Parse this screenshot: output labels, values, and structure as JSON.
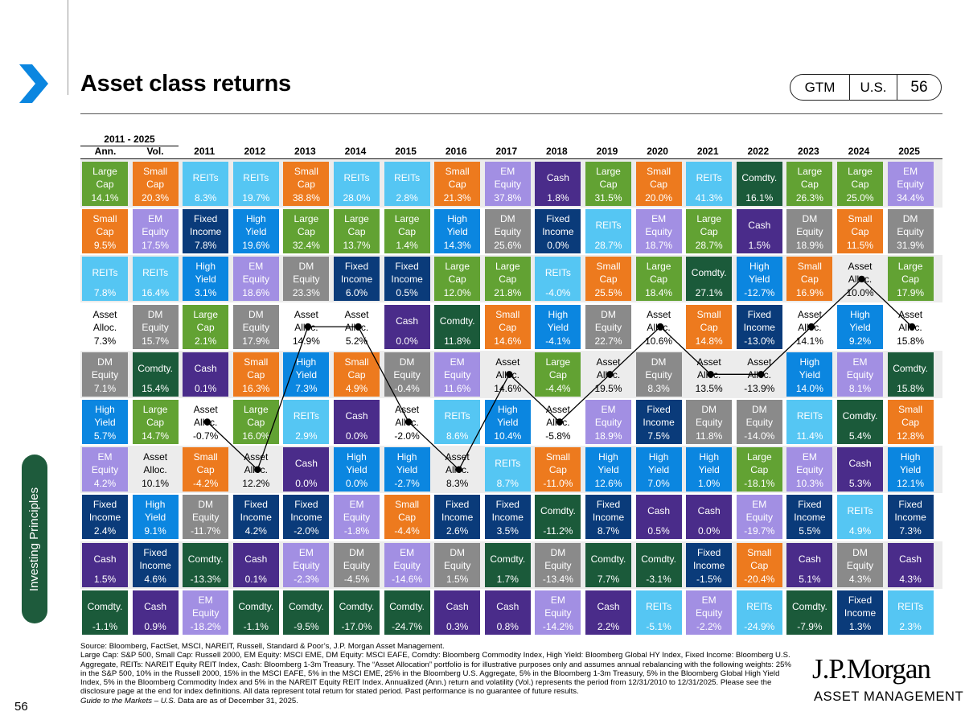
{
  "page": {
    "title": "Asset class returns",
    "badge": {
      "a": "GTM",
      "b": "U.S.",
      "c": "56"
    },
    "side_tab": "Investing Principles",
    "page_number": "56",
    "brand": {
      "name": "J.P.Morgan",
      "sub": "ASSET MANAGEMENT"
    }
  },
  "colors": {
    "Large Cap": "#62a233",
    "Small Cap": "#ed7a1e",
    "EM Equity": "#a28fe3",
    "REITs": "#55c6f3",
    "Cash": "#4a2c8a",
    "Fixed Income": "#0a3b7a",
    "High Yield": "#0b86e0",
    "DM Equity": "#8a8a8a",
    "Comdty.": "#1b5a3a",
    "Asset Alloc.": "#ffffff"
  },
  "chart_data": {
    "type": "table",
    "title": "Asset class returns",
    "period_label": "2011 - 2025",
    "summary_headers": [
      "Ann.",
      "Vol."
    ],
    "years": [
      "2011",
      "2012",
      "2013",
      "2014",
      "2015",
      "2016",
      "2017",
      "2018",
      "2019",
      "2020",
      "2021",
      "2022",
      "2023",
      "2024",
      "2025"
    ],
    "annualized": [
      {
        "asset": "Large Cap",
        "value": "14.1%"
      },
      {
        "asset": "Small Cap",
        "value": "9.5%"
      },
      {
        "asset": "REITs",
        "value": "7.8%"
      },
      {
        "asset": "Asset Alloc.",
        "value": "7.3%"
      },
      {
        "asset": "DM Equity",
        "value": "7.1%"
      },
      {
        "asset": "High Yield",
        "value": "5.7%"
      },
      {
        "asset": "EM Equity",
        "value": "4.2%"
      },
      {
        "asset": "Fixed Income",
        "value": "2.4%"
      },
      {
        "asset": "Cash",
        "value": "1.5%"
      },
      {
        "asset": "Comdty.",
        "value": "-1.1%"
      }
    ],
    "volatility": [
      {
        "asset": "Small Cap",
        "value": "20.3%"
      },
      {
        "asset": "EM Equity",
        "value": "17.5%"
      },
      {
        "asset": "REITs",
        "value": "16.4%"
      },
      {
        "asset": "DM Equity",
        "value": "15.7%"
      },
      {
        "asset": "Comdty.",
        "value": "15.4%"
      },
      {
        "asset": "Large Cap",
        "value": "14.7%"
      },
      {
        "asset": "Asset Alloc.",
        "value": "10.1%"
      },
      {
        "asset": "High Yield",
        "value": "9.1%"
      },
      {
        "asset": "Fixed Income",
        "value": "4.6%"
      },
      {
        "asset": "Cash",
        "value": "0.9%"
      }
    ],
    "columns": [
      [
        {
          "asset": "REITs",
          "value": "8.3%"
        },
        {
          "asset": "Fixed Income",
          "value": "7.8%"
        },
        {
          "asset": "High Yield",
          "value": "3.1%"
        },
        {
          "asset": "Large Cap",
          "value": "2.1%"
        },
        {
          "asset": "Cash",
          "value": "0.1%"
        },
        {
          "asset": "Asset Alloc.",
          "value": "-0.7%"
        },
        {
          "asset": "Small Cap",
          "value": "-4.2%"
        },
        {
          "asset": "DM Equity",
          "value": "-11.7%"
        },
        {
          "asset": "Comdty.",
          "value": "-13.3%"
        },
        {
          "asset": "EM Equity",
          "value": "-18.2%"
        }
      ],
      [
        {
          "asset": "REITs",
          "value": "19.7%"
        },
        {
          "asset": "High Yield",
          "value": "19.6%"
        },
        {
          "asset": "EM Equity",
          "value": "18.6%"
        },
        {
          "asset": "DM Equity",
          "value": "17.9%"
        },
        {
          "asset": "Small Cap",
          "value": "16.3%"
        },
        {
          "asset": "Large Cap",
          "value": "16.0%"
        },
        {
          "asset": "Asset Alloc.",
          "value": "12.2%"
        },
        {
          "asset": "Fixed Income",
          "value": "4.2%"
        },
        {
          "asset": "Cash",
          "value": "0.1%"
        },
        {
          "asset": "Comdty.",
          "value": "-1.1%"
        }
      ],
      [
        {
          "asset": "Small Cap",
          "value": "38.8%"
        },
        {
          "asset": "Large Cap",
          "value": "32.4%"
        },
        {
          "asset": "DM Equity",
          "value": "23.3%"
        },
        {
          "asset": "Asset Alloc.",
          "value": "14.9%"
        },
        {
          "asset": "High Yield",
          "value": "7.3%"
        },
        {
          "asset": "REITs",
          "value": "2.9%"
        },
        {
          "asset": "Cash",
          "value": "0.0%"
        },
        {
          "asset": "Fixed Income",
          "value": "-2.0%"
        },
        {
          "asset": "EM Equity",
          "value": "-2.3%"
        },
        {
          "asset": "Comdty.",
          "value": "-9.5%"
        }
      ],
      [
        {
          "asset": "REITs",
          "value": "28.0%"
        },
        {
          "asset": "Large Cap",
          "value": "13.7%"
        },
        {
          "asset": "Fixed Income",
          "value": "6.0%"
        },
        {
          "asset": "Asset Alloc.",
          "value": "5.2%"
        },
        {
          "asset": "Small Cap",
          "value": "4.9%"
        },
        {
          "asset": "Cash",
          "value": "0.0%"
        },
        {
          "asset": "High Yield",
          "value": "0.0%"
        },
        {
          "asset": "EM Equity",
          "value": "-1.8%"
        },
        {
          "asset": "DM Equity",
          "value": "-4.5%"
        },
        {
          "asset": "Comdty.",
          "value": "-17.0%"
        }
      ],
      [
        {
          "asset": "REITs",
          "value": "2.8%"
        },
        {
          "asset": "Large Cap",
          "value": "1.4%"
        },
        {
          "asset": "Fixed Income",
          "value": "0.5%"
        },
        {
          "asset": "Cash",
          "value": "0.0%"
        },
        {
          "asset": "DM Equity",
          "value": "-0.4%"
        },
        {
          "asset": "Asset Alloc.",
          "value": "-2.0%"
        },
        {
          "asset": "High Yield",
          "value": "-2.7%"
        },
        {
          "asset": "Small Cap",
          "value": "-4.4%"
        },
        {
          "asset": "EM Equity",
          "value": "-14.6%"
        },
        {
          "asset": "Comdty.",
          "value": "-24.7%"
        }
      ],
      [
        {
          "asset": "Small Cap",
          "value": "21.3%"
        },
        {
          "asset": "High Yield",
          "value": "14.3%"
        },
        {
          "asset": "Large Cap",
          "value": "12.0%"
        },
        {
          "asset": "Comdty.",
          "value": "11.8%"
        },
        {
          "asset": "EM Equity",
          "value": "11.6%"
        },
        {
          "asset": "REITs",
          "value": "8.6%"
        },
        {
          "asset": "Asset Alloc.",
          "value": "8.3%"
        },
        {
          "asset": "Fixed Income",
          "value": "2.6%"
        },
        {
          "asset": "DM Equity",
          "value": "1.5%"
        },
        {
          "asset": "Cash",
          "value": "0.3%"
        }
      ],
      [
        {
          "asset": "EM Equity",
          "value": "37.8%"
        },
        {
          "asset": "DM Equity",
          "value": "25.6%"
        },
        {
          "asset": "Large Cap",
          "value": "21.8%"
        },
        {
          "asset": "Small Cap",
          "value": "14.6%"
        },
        {
          "asset": "Asset Alloc.",
          "value": "14.6%"
        },
        {
          "asset": "High Yield",
          "value": "10.4%"
        },
        {
          "asset": "REITs",
          "value": "8.7%"
        },
        {
          "asset": "Fixed Income",
          "value": "3.5%"
        },
        {
          "asset": "Comdty.",
          "value": "1.7%"
        },
        {
          "asset": "Cash",
          "value": "0.8%"
        }
      ],
      [
        {
          "asset": "Cash",
          "value": "1.8%"
        },
        {
          "asset": "Fixed Income",
          "value": "0.0%"
        },
        {
          "asset": "REITs",
          "value": "-4.0%"
        },
        {
          "asset": "High Yield",
          "value": "-4.1%"
        },
        {
          "asset": "Large Cap",
          "value": "-4.4%"
        },
        {
          "asset": "Asset Alloc.",
          "value": "-5.8%"
        },
        {
          "asset": "Small Cap",
          "value": "-11.0%"
        },
        {
          "asset": "Comdty.",
          "value": "-11.2%"
        },
        {
          "asset": "DM Equity",
          "value": "-13.4%"
        },
        {
          "asset": "EM Equity",
          "value": "-14.2%"
        }
      ],
      [
        {
          "asset": "Large Cap",
          "value": "31.5%"
        },
        {
          "asset": "REITs",
          "value": "28.7%"
        },
        {
          "asset": "Small Cap",
          "value": "25.5%"
        },
        {
          "asset": "DM Equity",
          "value": "22.7%"
        },
        {
          "asset": "Asset Alloc.",
          "value": "19.5%"
        },
        {
          "asset": "EM Equity",
          "value": "18.9%"
        },
        {
          "asset": "High Yield",
          "value": "12.6%"
        },
        {
          "asset": "Fixed Income",
          "value": "8.7%"
        },
        {
          "asset": "Comdty.",
          "value": "7.7%"
        },
        {
          "asset": "Cash",
          "value": "2.2%"
        }
      ],
      [
        {
          "asset": "Small Cap",
          "value": "20.0%"
        },
        {
          "asset": "EM Equity",
          "value": "18.7%"
        },
        {
          "asset": "Large Cap",
          "value": "18.4%"
        },
        {
          "asset": "Asset Alloc.",
          "value": "10.6%"
        },
        {
          "asset": "DM Equity",
          "value": "8.3%"
        },
        {
          "asset": "Fixed Income",
          "value": "7.5%"
        },
        {
          "asset": "High Yield",
          "value": "7.0%"
        },
        {
          "asset": "Cash",
          "value": "0.5%"
        },
        {
          "asset": "Comdty.",
          "value": "-3.1%"
        },
        {
          "asset": "REITs",
          "value": "-5.1%"
        }
      ],
      [
        {
          "asset": "REITs",
          "value": "41.3%"
        },
        {
          "asset": "Large Cap",
          "value": "28.7%"
        },
        {
          "asset": "Comdty.",
          "value": "27.1%"
        },
        {
          "asset": "Small Cap",
          "value": "14.8%"
        },
        {
          "asset": "Asset Alloc.",
          "value": "13.5%"
        },
        {
          "asset": "DM Equity",
          "value": "11.8%"
        },
        {
          "asset": "High Yield",
          "value": "1.0%"
        },
        {
          "asset": "Cash",
          "value": "0.0%"
        },
        {
          "asset": "Fixed Income",
          "value": "-1.5%"
        },
        {
          "asset": "EM Equity",
          "value": "-2.2%"
        }
      ],
      [
        {
          "asset": "Comdty.",
          "value": "16.1%"
        },
        {
          "asset": "Cash",
          "value": "1.5%"
        },
        {
          "asset": "High Yield",
          "value": "-12.7%"
        },
        {
          "asset": "Fixed Income",
          "value": "-13.0%"
        },
        {
          "asset": "Asset Alloc.",
          "value": "-13.9%"
        },
        {
          "asset": "DM Equity",
          "value": "-14.0%"
        },
        {
          "asset": "Large Cap",
          "value": "-18.1%"
        },
        {
          "asset": "EM Equity",
          "value": "-19.7%"
        },
        {
          "asset": "Small Cap",
          "value": "-20.4%"
        },
        {
          "asset": "REITs",
          "value": "-24.9%"
        }
      ],
      [
        {
          "asset": "Large Cap",
          "value": "26.3%"
        },
        {
          "asset": "DM Equity",
          "value": "18.9%"
        },
        {
          "asset": "Small Cap",
          "value": "16.9%"
        },
        {
          "asset": "Asset Alloc.",
          "value": "14.1%"
        },
        {
          "asset": "High Yield",
          "value": "14.0%"
        },
        {
          "asset": "REITs",
          "value": "11.4%"
        },
        {
          "asset": "EM Equity",
          "value": "10.3%"
        },
        {
          "asset": "Fixed Income",
          "value": "5.5%"
        },
        {
          "asset": "Cash",
          "value": "5.1%"
        },
        {
          "asset": "Comdty.",
          "value": "-7.9%"
        }
      ],
      [
        {
          "asset": "Large Cap",
          "value": "25.0%"
        },
        {
          "asset": "Small Cap",
          "value": "11.5%"
        },
        {
          "asset": "Asset Alloc.",
          "value": "10.0%"
        },
        {
          "asset": "High Yield",
          "value": "9.2%"
        },
        {
          "asset": "EM Equity",
          "value": "8.1%"
        },
        {
          "asset": "Comdty.",
          "value": "5.4%"
        },
        {
          "asset": "Cash",
          "value": "5.3%"
        },
        {
          "asset": "REITs",
          "value": "4.9%"
        },
        {
          "asset": "DM Equity",
          "value": "4.3%"
        },
        {
          "asset": "Fixed Income",
          "value": "1.3%"
        }
      ],
      [
        {
          "asset": "EM Equity",
          "value": "34.4%"
        },
        {
          "asset": "DM Equity",
          "value": "31.9%"
        },
        {
          "asset": "Large Cap",
          "value": "17.9%"
        },
        {
          "asset": "Asset Alloc.",
          "value": "15.8%"
        },
        {
          "asset": "Comdty.",
          "value": "15.8%"
        },
        {
          "asset": "Small Cap",
          "value": "12.8%"
        },
        {
          "asset": "High Yield",
          "value": "12.1%"
        },
        {
          "asset": "Fixed Income",
          "value": "7.3%"
        },
        {
          "asset": "Cash",
          "value": "4.3%"
        },
        {
          "asset": "REITs",
          "value": "2.3%"
        }
      ]
    ]
  },
  "footnote": {
    "source": "Source: Bloomberg, FactSet, MSCI, NAREIT, Russell, Standard & Poor’s, J.P. Morgan Asset Management.",
    "body": "Large Cap: S&P 500, Small Cap: Russell 2000, EM Equity: MSCI EME, DM Equity: MSCI EAFE, Comdty: Bloomberg Commodity Index, High Yield: Bloomberg Global HY Index, Fixed Income: Bloomberg U.S. Aggregate, REITs: NAREIT Equity REIT Index, Cash: Bloomberg 1-3m Treasury. The “Asset Allocation” portfolio is for illustrative purposes only and assumes annual rebalancing with the following weights: 25% in the S&P 500, 10% in the Russell 2000, 15% in the MSCI EAFE, 5% in the MSCI EME, 25% in the Bloomberg U.S. Aggregate, 5% in the Bloomberg 1-3m Treasury, 5% in the Bloomberg Global High Yield Index, 5% in the Bloomberg Commodity Index and 5% in the NAREIT Equity REIT Index. Annualized (Ann.) return and volatility (Vol.) represents the period from 12/31/2010 to 12/31/2025. Please see the disclosure page at the end for index definitions. All data represent total return for stated period. Past performance is no guarantee of future results.",
    "guide_italic": "Guide to the Markets – U.S.",
    "guide_rest": " Data are as of December 31, 2025."
  }
}
